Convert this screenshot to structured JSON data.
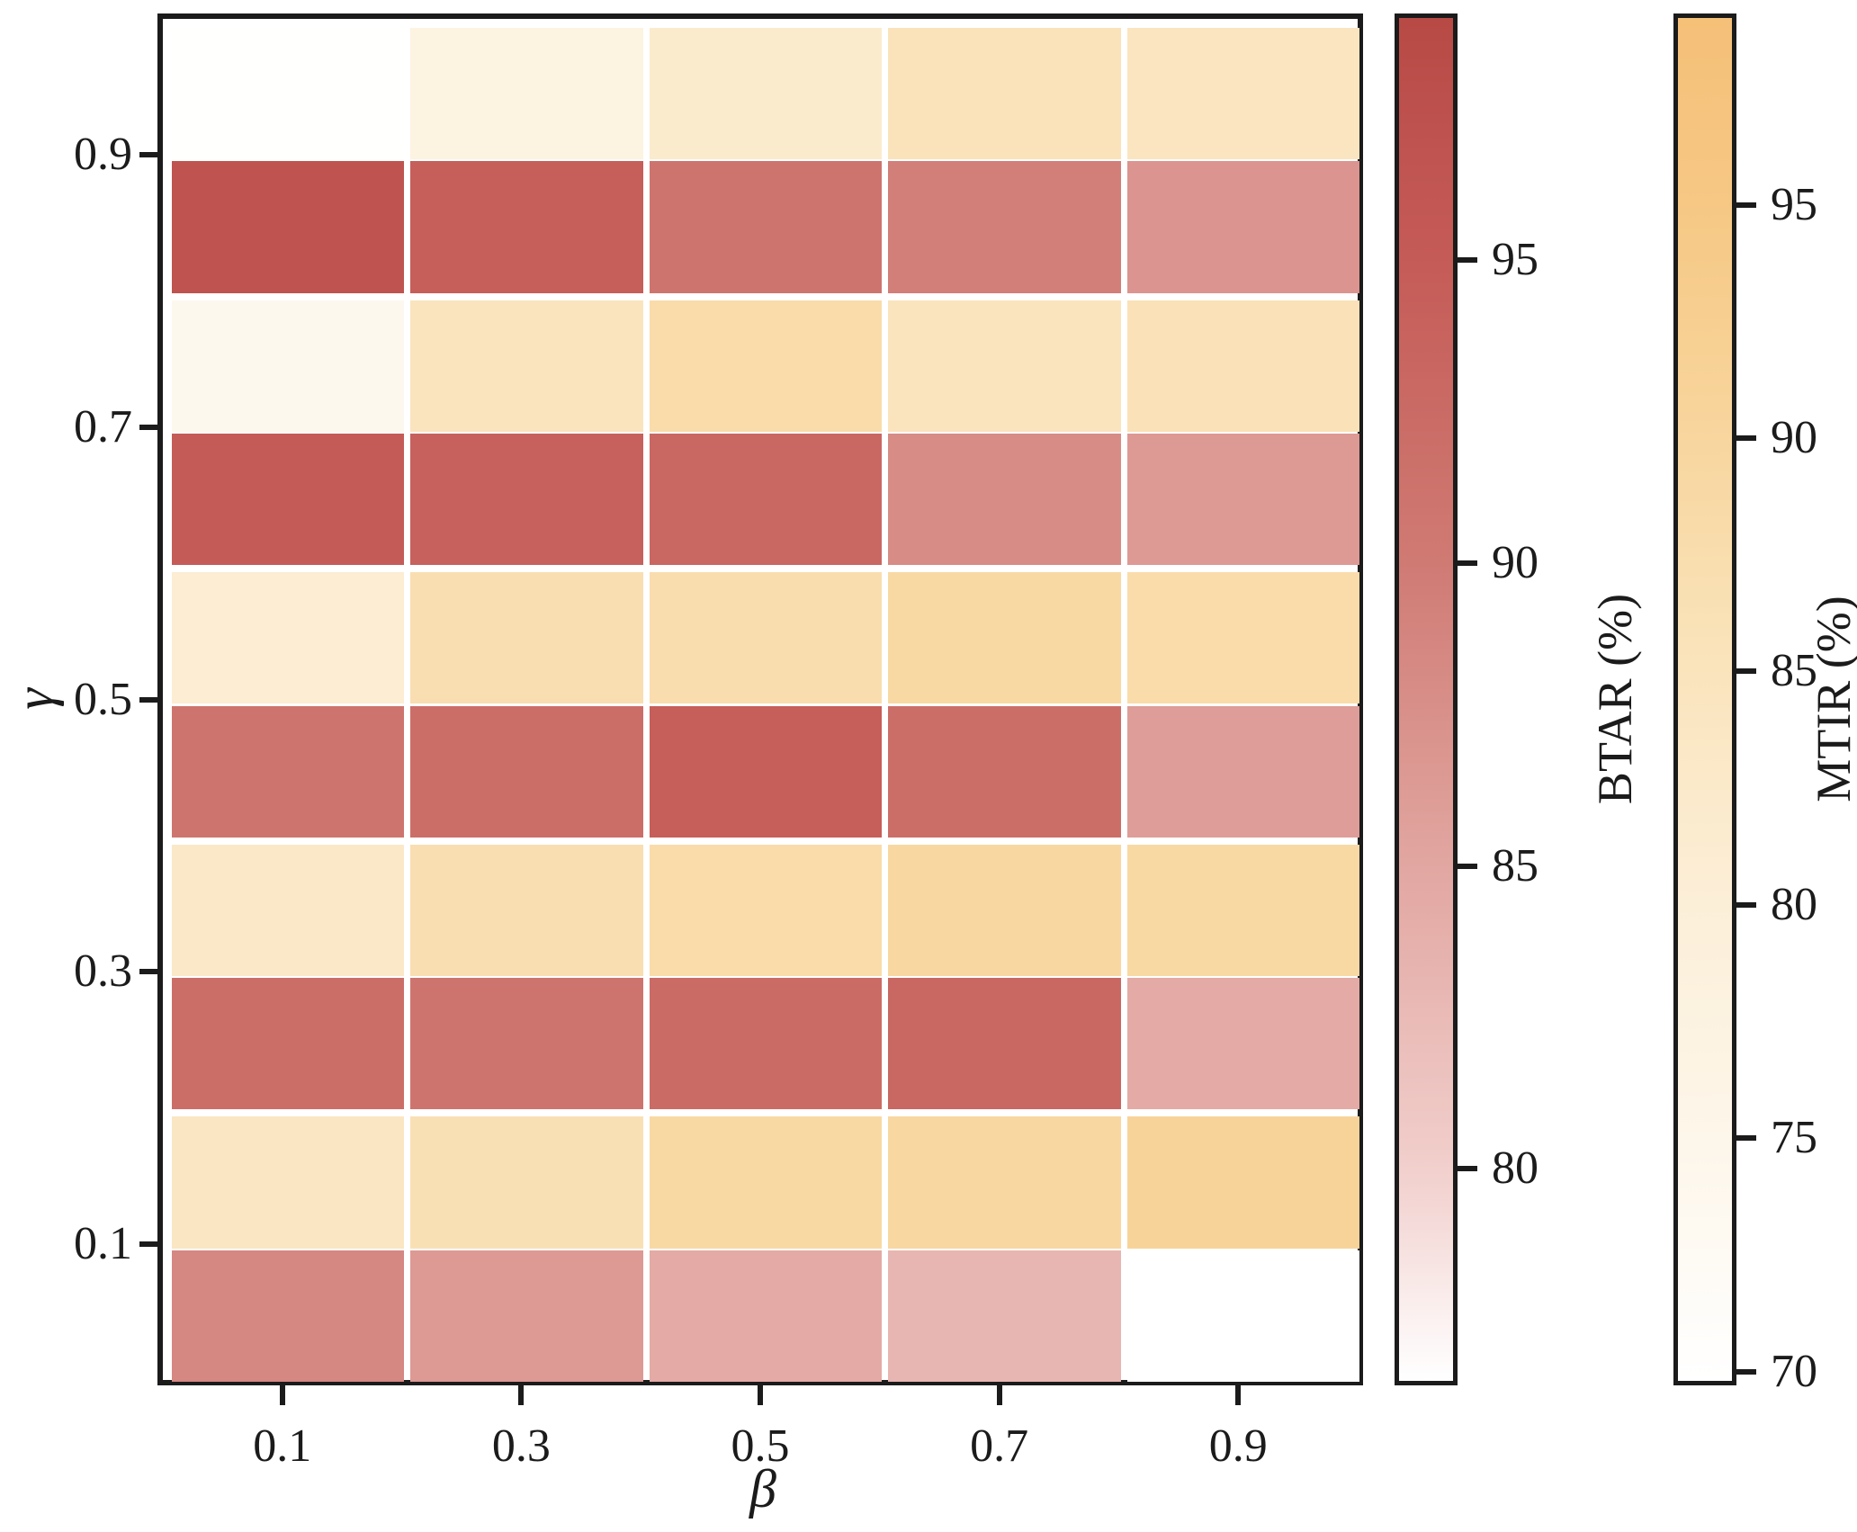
{
  "chart_data": {
    "type": "heatmap",
    "title": "",
    "xlabel": "β",
    "ylabel": "γ",
    "x_tick_labels": [
      "0.1",
      "0.3",
      "0.5",
      "0.7",
      "0.9"
    ],
    "y_tick_labels": [
      "0.9",
      "0.7",
      "0.5",
      "0.3",
      "0.1"
    ],
    "beta_values": [
      0.1,
      0.3,
      0.5,
      0.7,
      0.9
    ],
    "gamma_values": [
      0.9,
      0.7,
      0.5,
      0.3,
      0.1
    ],
    "layout_note": "Each γ row is split horizontally: upper half = MTIR (orange colormap), lower half = BTAR (red colormap). γ=0.9 row at top, γ=0.1 at bottom. Values estimated from colorbar calibration.",
    "series": [
      {
        "name": "MTIR (%)",
        "half": "top",
        "rows": [
          [
            70.0,
            77.5,
            82.0,
            85.5,
            84.5
          ],
          [
            74.0,
            85.0,
            88.0,
            85.0,
            86.0
          ],
          [
            81.0,
            87.0,
            87.5,
            89.0,
            88.0
          ],
          [
            83.0,
            87.0,
            88.0,
            89.5,
            89.0
          ],
          [
            84.0,
            86.5,
            89.0,
            89.5,
            91.0
          ]
        ]
      },
      {
        "name": "BTAR (%)",
        "half": "bottom",
        "rows": [
          [
            97.0,
            94.5,
            91.0,
            89.5,
            87.0
          ],
          [
            95.0,
            94.0,
            93.0,
            88.0,
            86.5
          ],
          [
            91.0,
            92.0,
            94.5,
            92.0,
            86.0
          ],
          [
            92.0,
            91.0,
            92.5,
            93.0,
            84.5
          ],
          [
            88.5,
            86.5,
            84.5,
            83.0,
            76.5
          ]
        ]
      }
    ],
    "colorbars": [
      {
        "label": "BTAR (%)",
        "vmin": 76.5,
        "vmax": 99.0,
        "ticks": [
          95,
          90,
          85,
          80
        ],
        "tick_labels": [
          "95",
          "90",
          "85",
          "80"
        ],
        "stops": [
          [
            76.5,
            "#ffffff"
          ],
          [
            80,
            "#f1cfcc"
          ],
          [
            85,
            "#e2a6a1"
          ],
          [
            90,
            "#d07a74"
          ],
          [
            95,
            "#c55b57"
          ],
          [
            99,
            "#b84a46"
          ]
        ]
      },
      {
        "label": "MTIR (%)",
        "vmin": 69.8,
        "vmax": 99.0,
        "ticks": [
          95,
          90,
          85,
          80,
          75,
          70
        ],
        "tick_labels": [
          "95",
          "90",
          "85",
          "80",
          "75",
          "70"
        ],
        "stops": [
          [
            69.8,
            "#ffffff"
          ],
          [
            75,
            "#fdf6ea"
          ],
          [
            80,
            "#fcefd8"
          ],
          [
            85,
            "#fae4bd"
          ],
          [
            90,
            "#f8d69e"
          ],
          [
            95,
            "#f6c884"
          ],
          [
            99,
            "#f5c078"
          ]
        ]
      }
    ],
    "grid": "white gaps between cells",
    "legend_position": "two vertical colorbars right of plot",
    "spine_color": "#1b1b1b"
  }
}
